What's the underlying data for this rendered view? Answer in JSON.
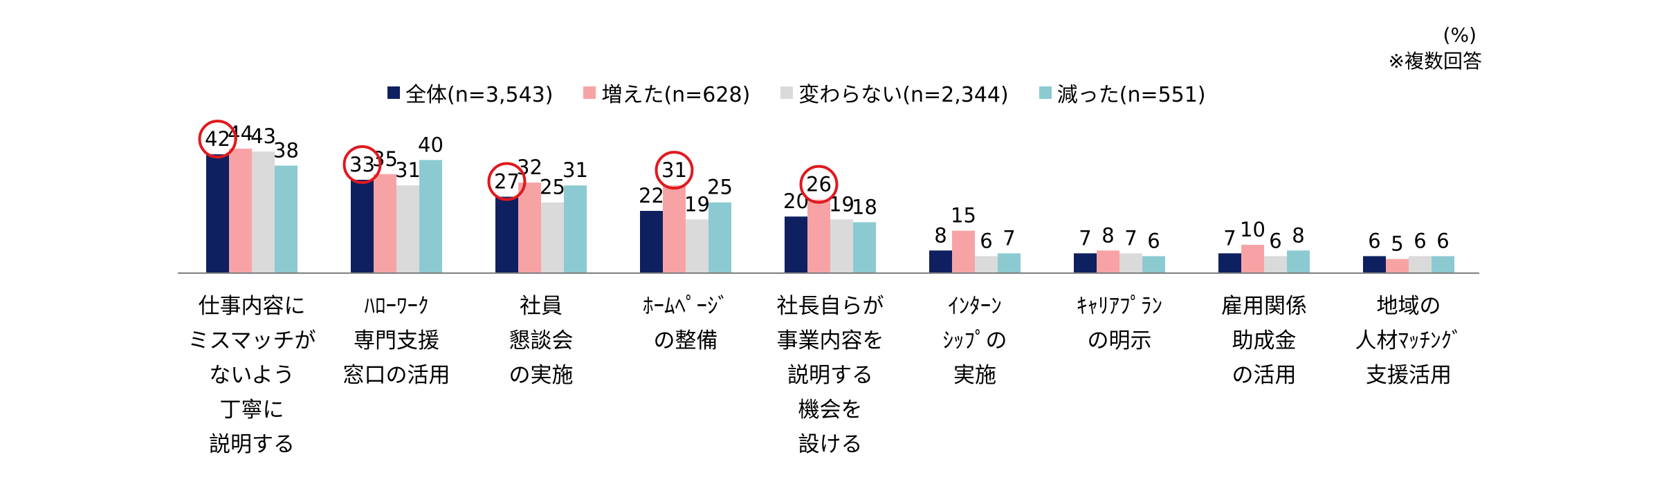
{
  "unit_note": "(%)",
  "multi_note": "※複数回答",
  "chart_data": {
    "type": "bar",
    "categories": [
      "仕事内容に\nミスマッチが\nないよう\n丁寧に\n説明する",
      "ﾊﾛｰﾜｰｸ\n専門支援\n窓口の活用",
      "社員\n懇談会\nの実施",
      "ﾎｰﾑﾍﾟｰｼﾞ\nの整備",
      "社長自らが\n事業内容を\n説明する\n機会を\n設ける",
      "ｲﾝﾀｰﾝ\nｼｯﾌﾟの\n実施",
      "ｷｬﾘｱﾌﾟﾗﾝ\nの明示",
      "雇用関係\n助成金\nの活用",
      "地域の\n人材ﾏｯﾁﾝｸﾞ\n支援活用"
    ],
    "series": [
      {
        "name": "全体(n=3,543)",
        "color": "#0f2060",
        "values": [
          42,
          33,
          27,
          22,
          20,
          8,
          7,
          7,
          6
        ]
      },
      {
        "name": "増えた(n=628)",
        "color": "#f7a3a5",
        "values": [
          44,
          35,
          32,
          31,
          26,
          15,
          8,
          10,
          5
        ]
      },
      {
        "name": "変わらない(n=2,344)",
        "color": "#dadada",
        "values": [
          43,
          31,
          25,
          19,
          19,
          6,
          7,
          6,
          6
        ]
      },
      {
        "name": "減った(n=551)",
        "color": "#8ccad1",
        "values": [
          38,
          40,
          31,
          25,
          18,
          7,
          6,
          8,
          6
        ]
      }
    ],
    "highlighted": [
      {
        "category_index": 0,
        "series_index": 0
      },
      {
        "category_index": 1,
        "series_index": 0
      },
      {
        "category_index": 2,
        "series_index": 0
      },
      {
        "category_index": 3,
        "series_index": 1
      },
      {
        "category_index": 4,
        "series_index": 1
      }
    ],
    "highlight_color": "#e0191e",
    "ylim": [
      0,
      44
    ],
    "legend_position": "top",
    "grid": false
  }
}
